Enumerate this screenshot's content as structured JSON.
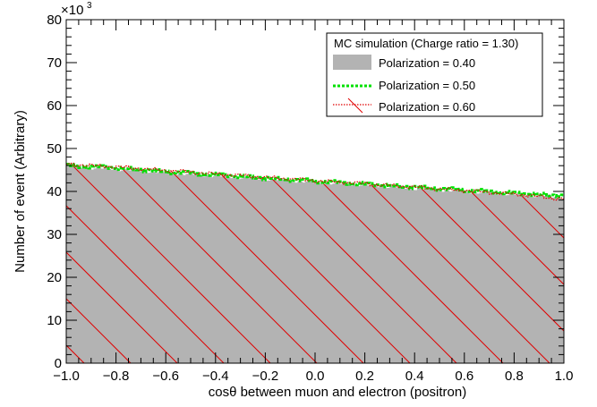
{
  "chart_data": {
    "type": "area",
    "xlabel": "cosθ between muon and electron (positron)",
    "ylabel": "Number of event (Arbitrary)",
    "y_multiplier_label": "×10",
    "y_multiplier_exponent": "3",
    "xlim": [
      -1.0,
      1.0
    ],
    "ylim": [
      0,
      80
    ],
    "x_ticks": [
      -1.0,
      -0.8,
      -0.6,
      -0.4,
      -0.2,
      0.0,
      0.2,
      0.4,
      0.6,
      0.8,
      1.0
    ],
    "x_tick_labels": [
      "−1.0",
      "−0.8",
      "−0.6",
      "−0.4",
      "−0.2",
      "0.0",
      "0.2",
      "0.4",
      "0.6",
      "0.8",
      "1.0"
    ],
    "y_ticks": [
      0,
      10,
      20,
      30,
      40,
      50,
      60,
      70,
      80
    ],
    "y_tick_labels": [
      "0",
      "10",
      "20",
      "30",
      "40",
      "50",
      "60",
      "70",
      "80"
    ],
    "legend_title": "MC simulation (Charge ratio = 1.30)",
    "legend_position": "top-right",
    "grid": false,
    "x": [
      -1.0,
      -0.8,
      -0.6,
      -0.4,
      -0.2,
      0.0,
      0.2,
      0.4,
      0.6,
      0.8,
      1.0
    ],
    "series": [
      {
        "name": "Polarization = 0.40",
        "style": "filled-gray",
        "color": "#b3b3b3",
        "values": [
          45.8,
          45.2,
          44.4,
          43.6,
          42.9,
          42.1,
          41.5,
          40.7,
          40.0,
          39.3,
          38.6
        ]
      },
      {
        "name": "Polarization = 0.50",
        "style": "green-dashed",
        "color": "#00e000",
        "values": [
          46.0,
          45.5,
          44.6,
          43.9,
          43.1,
          42.4,
          41.7,
          41.0,
          40.3,
          39.6,
          39.0
        ]
      },
      {
        "name": "Polarization = 0.60",
        "style": "red-dotted-hatched",
        "color": "#e00000",
        "values": [
          46.4,
          45.7,
          44.9,
          44.1,
          43.3,
          42.5,
          41.8,
          41.0,
          40.2,
          39.4,
          38.2
        ]
      }
    ]
  }
}
